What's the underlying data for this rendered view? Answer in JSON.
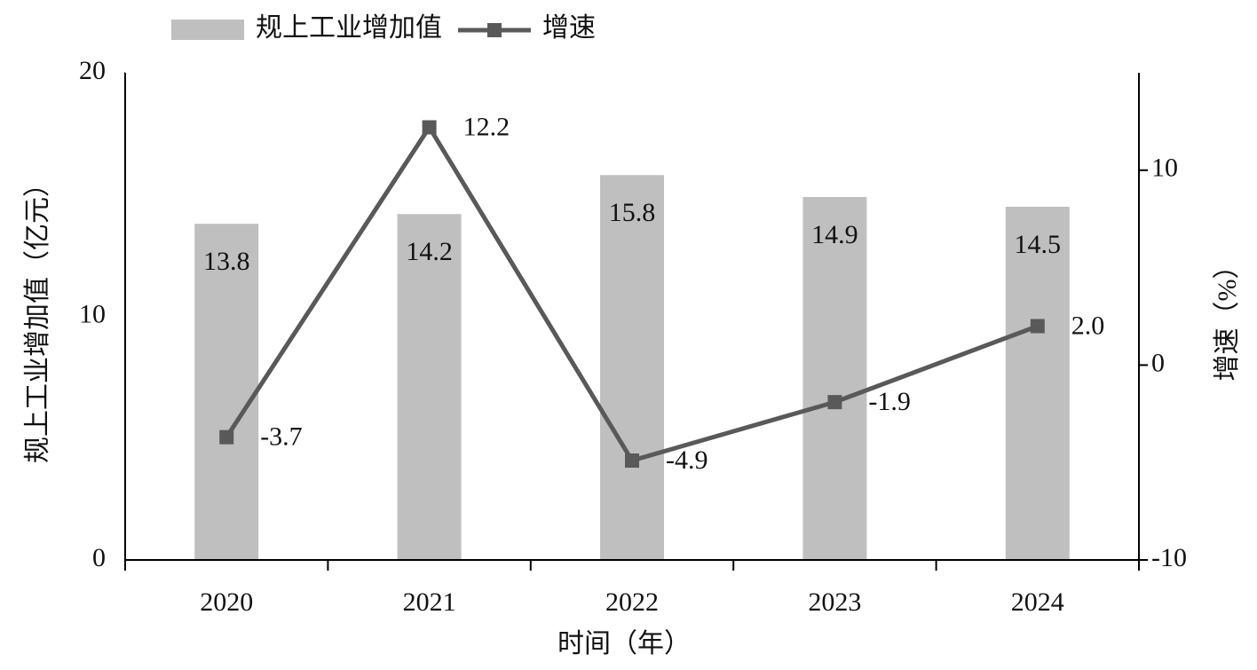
{
  "chart_data": {
    "type": "bar_line",
    "x_label": "时间（年）",
    "y_label": "规上工业增加值（亿元）",
    "y2_label": "增速（%）",
    "categories": [
      "2020",
      "2021",
      "2022",
      "2023",
      "2024"
    ],
    "series": [
      {
        "name": "规上工业增加值",
        "type": "bar",
        "color": "#bfbfbf",
        "values": [
          13.8,
          14.2,
          15.8,
          14.9,
          14.5
        ]
      },
      {
        "name": "增速",
        "type": "line",
        "axis": "y2",
        "color": "#595959",
        "values": [
          -3.7,
          12.2,
          -4.9,
          -1.9,
          2.0
        ],
        "value_labels": [
          "-3.7",
          "12.2",
          "-4.9",
          "-1.9",
          "2.0"
        ]
      }
    ],
    "ylim": [
      0,
      20
    ],
    "yticks": [
      0,
      10,
      20
    ],
    "y2lim": [
      -10,
      15
    ],
    "y2ticks": [
      -10,
      0,
      10
    ],
    "legend": "top"
  }
}
